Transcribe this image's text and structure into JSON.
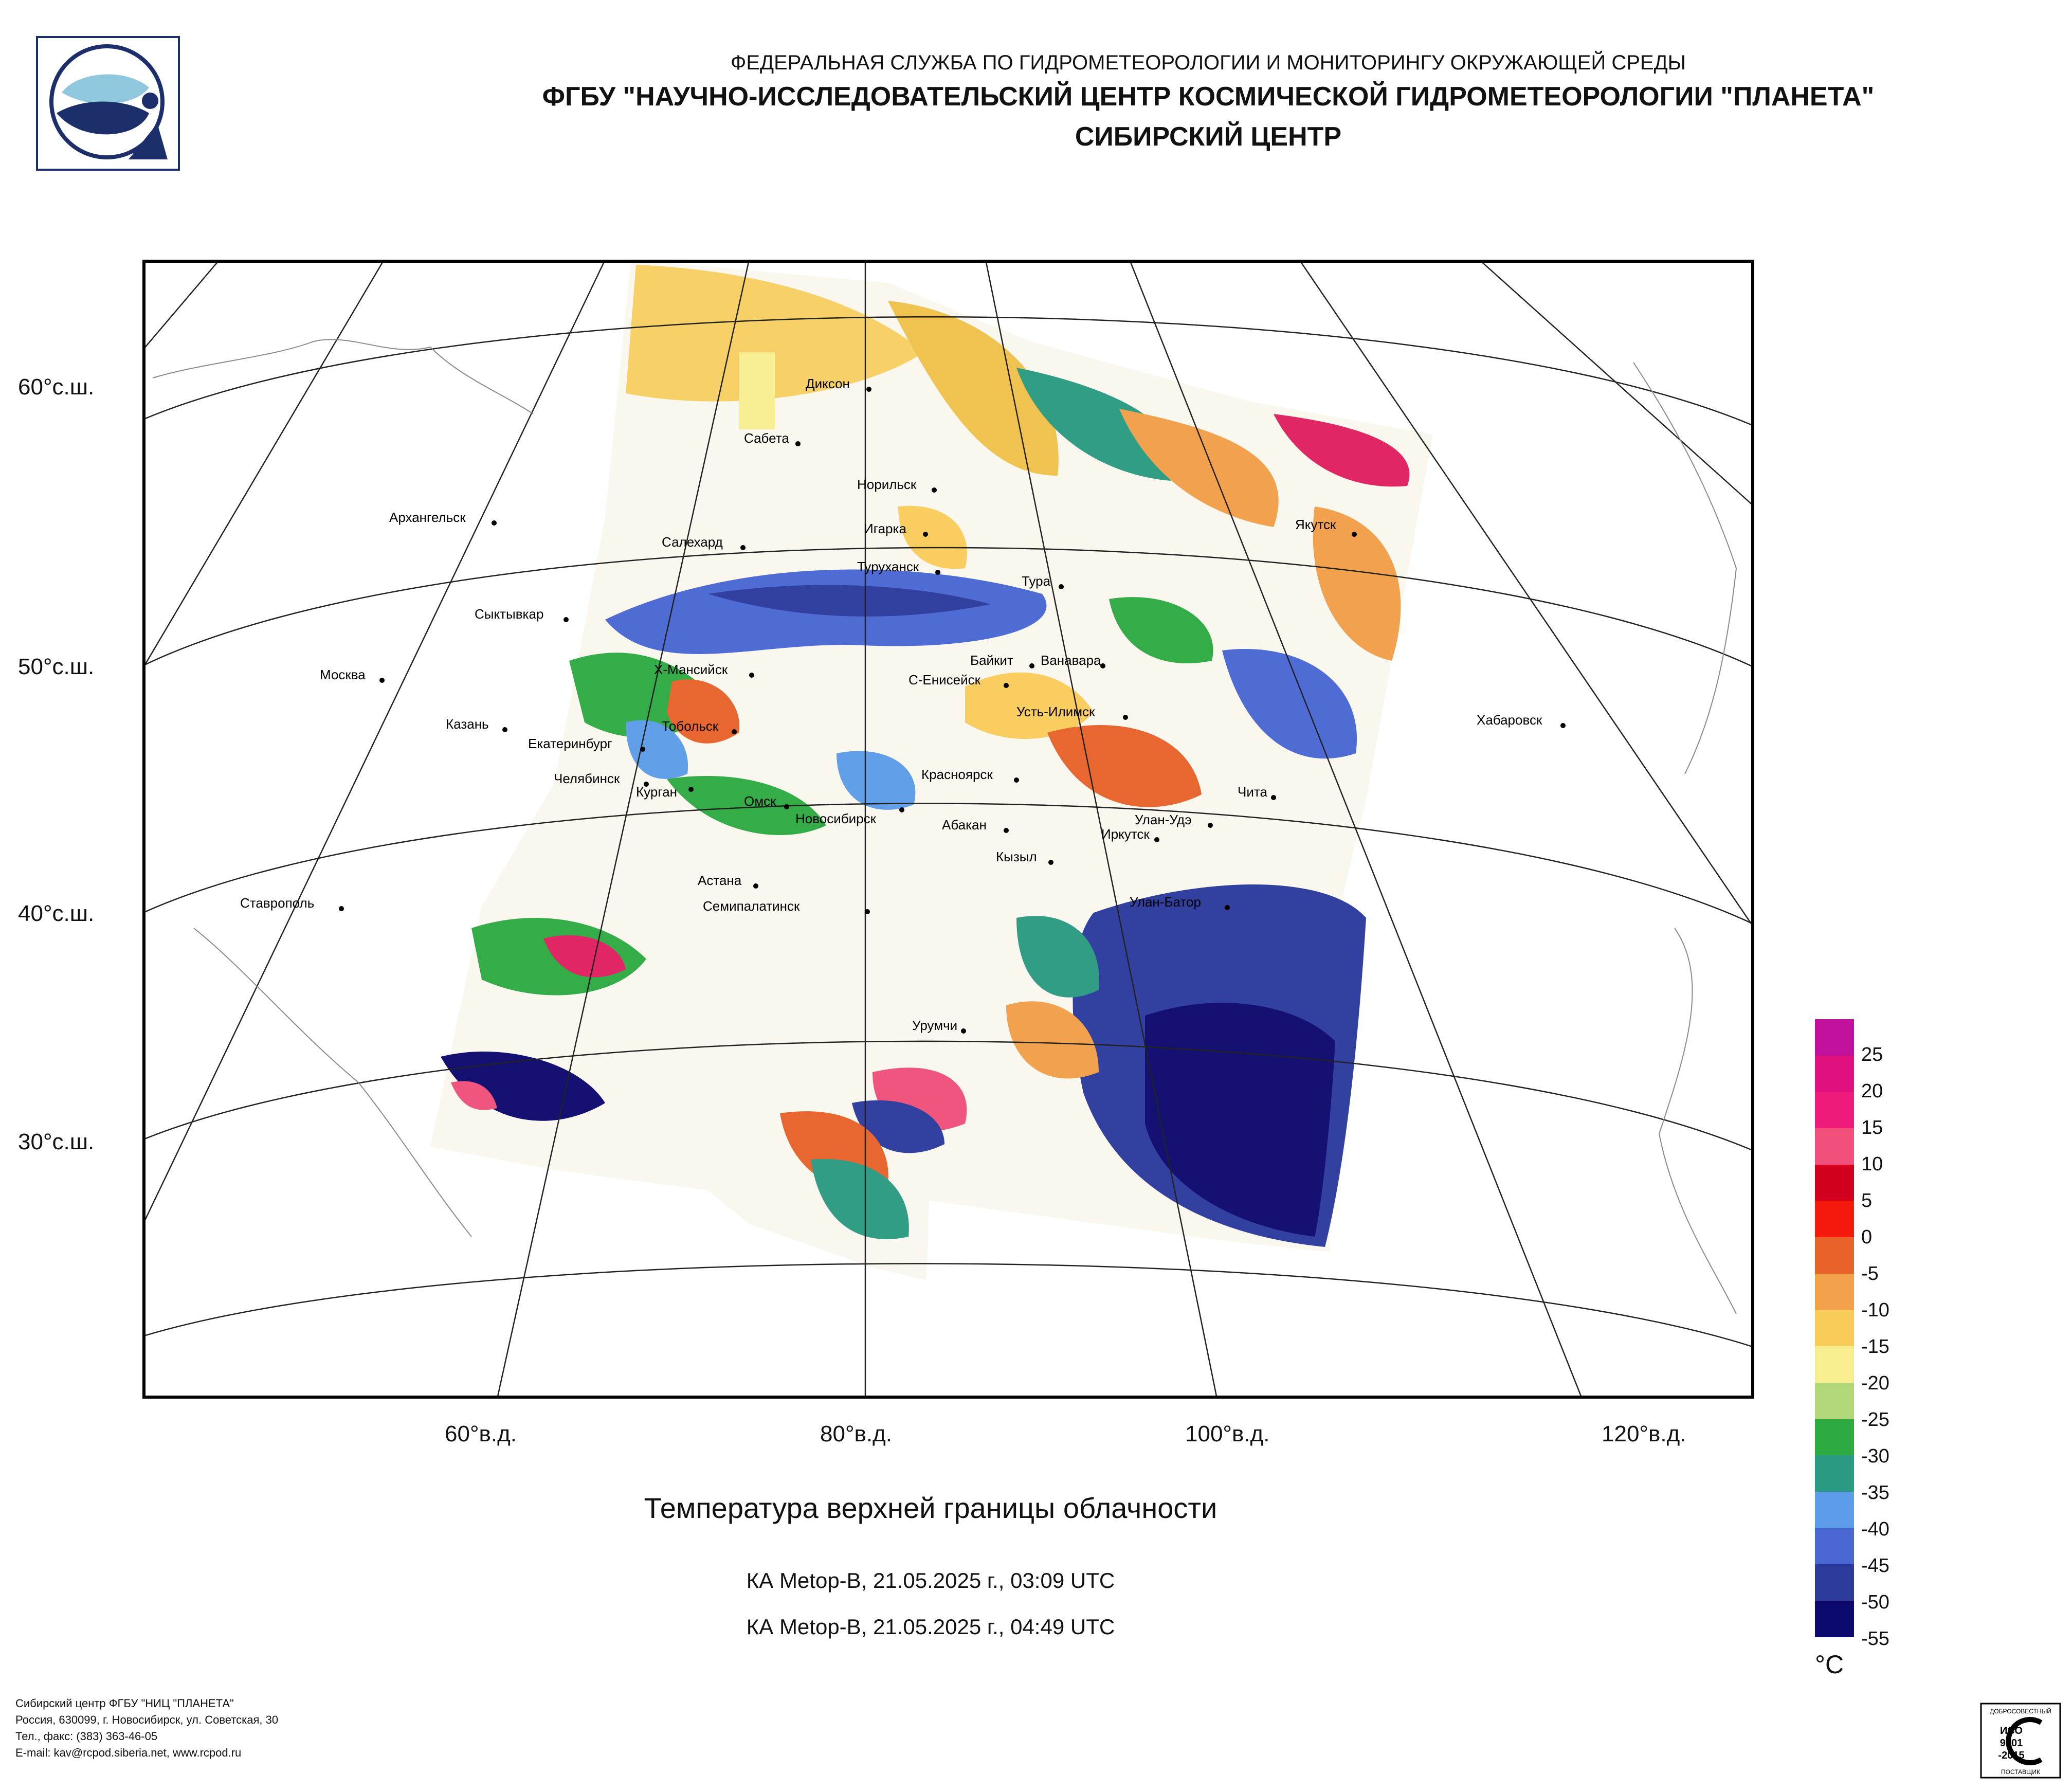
{
  "header": {
    "line1": "ФЕДЕРАЛЬНАЯ СЛУЖБА ПО ГИДРОМЕТЕОРОЛОГИИ И МОНИТОРИНГУ ОКРУЖАЮЩЕЙ СРЕДЫ",
    "line2": "ФГБУ \"НАУЧНО-ИССЛЕДОВАТЕЛЬСКИЙ ЦЕНТР КОСМИЧЕСКОЙ ГИДРОМЕТЕОРОЛОГИИ \"ПЛАНЕТА\"",
    "line3": "СИБИРСКИЙ ЦЕНТР"
  },
  "axes": {
    "lat_labels": [
      "60°с.ш.",
      "50°с.ш.",
      "40°с.ш.",
      "30°с.ш."
    ],
    "lon_labels": [
      "60°в.д.",
      "80°в.д.",
      "100°в.д.",
      "120°в.д."
    ]
  },
  "cities": [
    {
      "name": "Диксон"
    },
    {
      "name": "Сабета"
    },
    {
      "name": "Норильск"
    },
    {
      "name": "Игарка"
    },
    {
      "name": "Салехард"
    },
    {
      "name": "Туруханск"
    },
    {
      "name": "Тура"
    },
    {
      "name": "Якутск"
    },
    {
      "name": "Архангельск"
    },
    {
      "name": "Сыктывкар"
    },
    {
      "name": "Москва"
    },
    {
      "name": "Казань"
    },
    {
      "name": "Х-Мансийск"
    },
    {
      "name": "Байкит"
    },
    {
      "name": "Ванавара"
    },
    {
      "name": "С-Енисейск"
    },
    {
      "name": "Усть-Илимск"
    },
    {
      "name": "Тобольск"
    },
    {
      "name": "Екатеринбург"
    },
    {
      "name": "Челябинск"
    },
    {
      "name": "Курган"
    },
    {
      "name": "Омск"
    },
    {
      "name": "Новосибирск"
    },
    {
      "name": "Красноярск"
    },
    {
      "name": "Абакан"
    },
    {
      "name": "Чита"
    },
    {
      "name": "Хабаровск"
    },
    {
      "name": "Улан-Удэ"
    },
    {
      "name": "Иркутск"
    },
    {
      "name": "Кызыл"
    },
    {
      "name": "Астана"
    },
    {
      "name": "Семипалатинск"
    },
    {
      "name": "Улан-Батор"
    },
    {
      "name": "Ставрополь"
    },
    {
      "name": "Урумчи"
    }
  ],
  "caption": {
    "title": "Температура верхней границы облачности",
    "pass1": "КА Metop-B, 21.05.2025 г., 03:09 UTC",
    "pass2": "КА Metop-B, 21.05.2025 г., 04:49 UTC"
  },
  "legend": {
    "unit": "°C",
    "labels": [
      "25",
      "20",
      "15",
      "10",
      "5",
      "0",
      "-5",
      "-10",
      "-15",
      "-20",
      "-25",
      "-30",
      "-35",
      "-40",
      "-45",
      "-50",
      "-55"
    ],
    "colors": [
      "#c1119c",
      "#e0117e",
      "#ee1a7c",
      "#f0507a",
      "#d2001e",
      "#f5180c",
      "#e8622a",
      "#f2a04a",
      "#f9cc5a",
      "#f8ee90",
      "#b2d87a",
      "#2eaa42",
      "#2b9a82",
      "#5c9ce8",
      "#4a68d4",
      "#2c3a9c",
      "#0d0a6e"
    ]
  },
  "footer": {
    "org": "Сибирский центр ФГБУ \"НИЦ \"ПЛАНЕТА\"",
    "address": "Россия, 630099, г. Новосибирск, ул. Советская, 30",
    "phone": "Тел., факс: (383) 363-46-05",
    "email": "E-mail: kav@rcpod.siberia.net, www.rcpod.ru"
  },
  "iso_badge": {
    "top": "ДОБРОСОВЕСТНЫЙ",
    "l1": "ИСО",
    "l2": "9001",
    "l3": "-2015",
    "bottom": "ПОСТАВЩИК"
  }
}
